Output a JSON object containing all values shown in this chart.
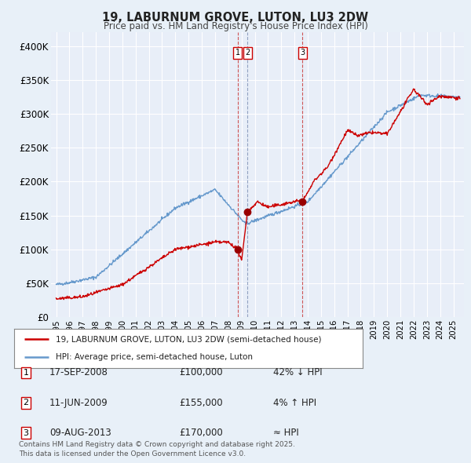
{
  "title": "19, LABURNUM GROVE, LUTON, LU3 2DW",
  "subtitle": "Price paid vs. HM Land Registry's House Price Index (HPI)",
  "bg_color": "#e8f0f8",
  "plot_bg_color": "#e8eef8",
  "ylim": [
    0,
    420000
  ],
  "yticks": [
    0,
    50000,
    100000,
    150000,
    200000,
    250000,
    300000,
    350000,
    400000
  ],
  "ytick_labels": [
    "£0",
    "£50K",
    "£100K",
    "£150K",
    "£200K",
    "£250K",
    "£300K",
    "£350K",
    "£400K"
  ],
  "sale1": {
    "date": "17-SEP-2008",
    "price": 100000,
    "label": "42% ↓ HPI",
    "x": 2008.72
  },
  "sale2": {
    "date": "11-JUN-2009",
    "price": 155000,
    "label": "4% ↑ HPI",
    "x": 2009.44
  },
  "sale3": {
    "date": "09-AUG-2013",
    "price": 170000,
    "label": "≈ HPI",
    "x": 2013.6
  },
  "legend_line1": "19, LABURNUM GROVE, LUTON, LU3 2DW (semi-detached house)",
  "legend_line2": "HPI: Average price, semi-detached house, Luton",
  "footer": "Contains HM Land Registry data © Crown copyright and database right 2025.\nThis data is licensed under the Open Government Licence v3.0.",
  "red_color": "#cc0000",
  "blue_color": "#6699cc",
  "marker_color": "#990000",
  "vline_color": "#cc4444"
}
